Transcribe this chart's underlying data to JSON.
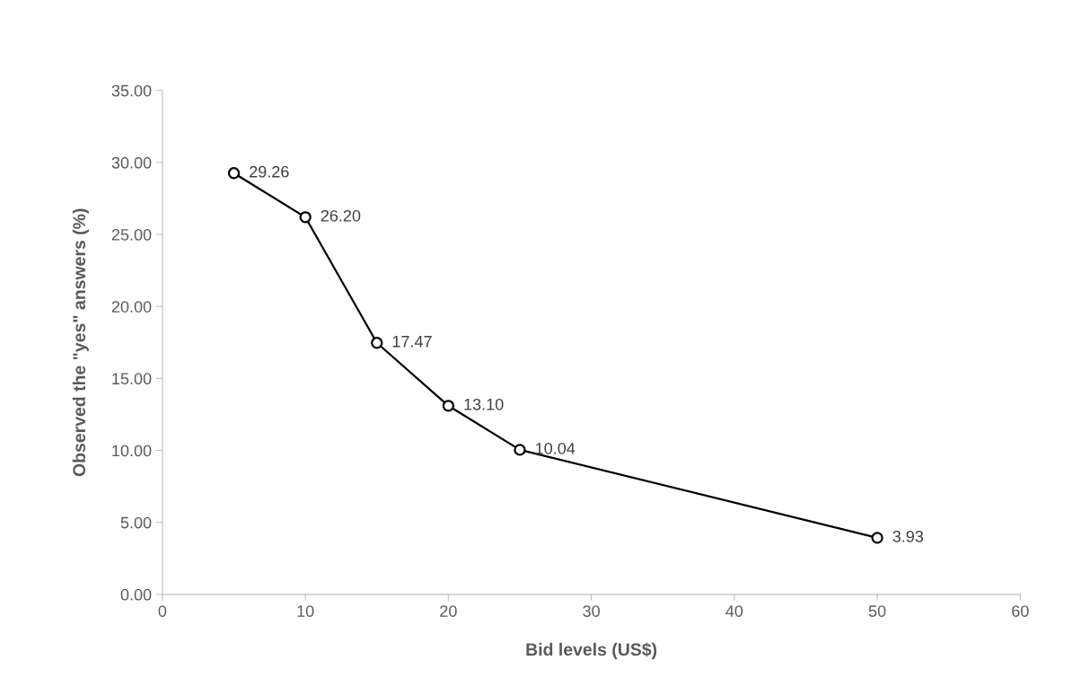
{
  "chart_data": {
    "type": "line",
    "xlabel": "Bid levels (US$)",
    "ylabel": "Observed the \"yes\" answers (%)",
    "x": [
      5,
      10,
      15,
      20,
      25,
      50
    ],
    "series": [
      {
        "color": "#000000",
        "values": [
          29.26,
          26.2,
          17.47,
          13.1,
          10.04,
          3.93
        ],
        "value_labels": [
          "29.26",
          "26.20",
          "17.47",
          "13.10",
          "10.04",
          "3.93"
        ]
      }
    ],
    "xlim": [
      0,
      60
    ],
    "xticks": [
      0,
      10,
      20,
      30,
      40,
      50,
      60
    ],
    "ylim": [
      0,
      35
    ],
    "yticks": [
      {
        "value": 0,
        "label": "0.00"
      },
      {
        "value": 5,
        "label": "5.00"
      },
      {
        "value": 10,
        "label": "10.00"
      },
      {
        "value": 15,
        "label": "15.00"
      },
      {
        "value": 20,
        "label": "20.00"
      },
      {
        "value": 25,
        "label": "25.00"
      },
      {
        "value": 30,
        "label": "30.00"
      },
      {
        "value": 35,
        "label": "35.00"
      }
    ],
    "marker": "circle",
    "line_style": "solid",
    "grid": false
  }
}
